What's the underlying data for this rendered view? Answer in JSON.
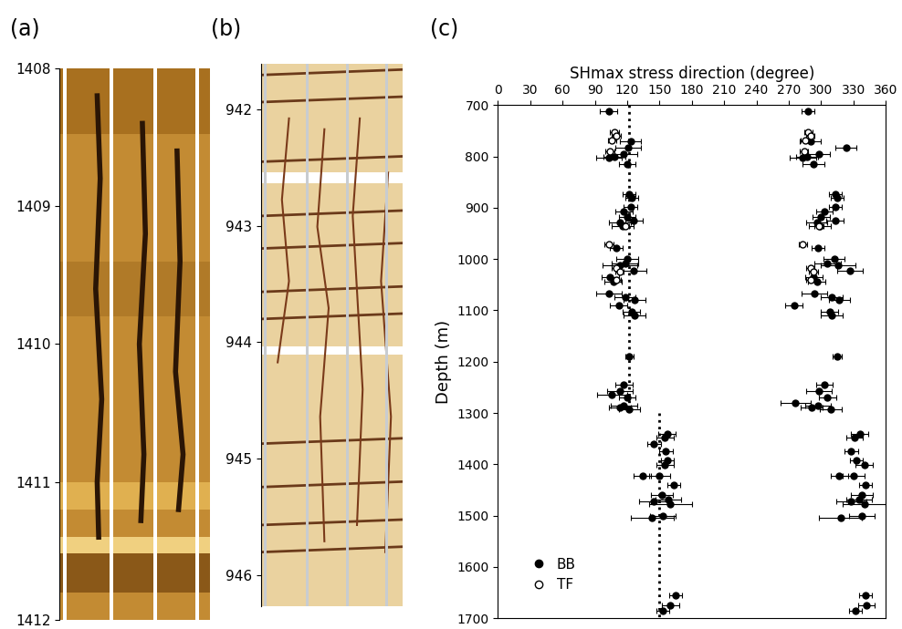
{
  "chart_data": [
    {
      "type": "image",
      "label": "(a)",
      "color": "#c38b33",
      "ylim": [
        1412,
        1408
      ],
      "yticks": [
        1408,
        1409,
        1410,
        1411,
        1412
      ]
    },
    {
      "type": "image",
      "label": "(b)",
      "color": "#ead29f",
      "ylim": [
        946.27,
        941.61
      ],
      "yticks": [
        942,
        943,
        944,
        945,
        946
      ]
    },
    {
      "type": "scatter",
      "label": "(c)",
      "xlabel": "SHmax stress direction (degree)",
      "ylabel": "Depth (m)",
      "xlim": [
        0,
        360
      ],
      "xticks": [
        0,
        30,
        60,
        90,
        120,
        150,
        180,
        210,
        240,
        270,
        300,
        330,
        360
      ],
      "ylim": [
        1700,
        700
      ],
      "yticks": [
        700,
        800,
        900,
        1000,
        1100,
        1200,
        1300,
        1400,
        1500,
        1600,
        1700
      ],
      "legend": "lower left",
      "reference_lines": [
        {
          "x": 122,
          "y": [
            700,
            1300
          ]
        },
        {
          "x": 150,
          "y": [
            1300,
            1700
          ]
        }
      ],
      "series": [
        {
          "name": "BB",
          "color": "#000000",
          "marker": "filled_circle",
          "x": [
            103,
            123,
            121,
            117,
            108,
            103,
            120,
            122,
            124,
            123,
            117,
            120,
            126,
            113,
            116,
            110,
            120,
            118,
            113,
            126,
            104,
            107,
            103,
            118,
            127,
            112,
            124,
            127,
            122,
            117,
            113,
            106,
            120,
            117,
            113,
            122,
            157,
            155,
            145,
            156,
            157,
            155,
            134,
            150,
            163,
            152,
            158,
            145,
            160,
            143,
            153,
            165,
            160,
            153,
            288,
            290,
            323,
            298,
            287,
            283,
            293,
            313,
            315,
            313,
            303,
            300,
            313,
            296,
            299,
            297,
            312,
            306,
            316,
            327,
            293,
            296,
            294,
            310,
            317,
            275,
            308,
            310,
            315,
            303,
            298,
            276,
            306,
            297,
            291,
            309,
            336,
            331,
            328,
            333,
            340,
            317,
            330,
            341,
            338,
            335,
            328,
            340,
            318,
            338,
            341,
            342,
            332
          ],
          "y": [
            712,
            770,
            783,
            795,
            800,
            803,
            815,
            873,
            880,
            898,
            908,
            918,
            925,
            928,
            935,
            978,
            1000,
            1008,
            1012,
            1022,
            1035,
            1045,
            1068,
            1075,
            1080,
            1090,
            1103,
            1110,
            1190,
            1245,
            1258,
            1265,
            1270,
            1285,
            1290,
            1293,
            1340,
            1348,
            1360,
            1375,
            1393,
            1402,
            1423,
            1423,
            1440,
            1460,
            1468,
            1472,
            1478,
            1505,
            1500,
            1655,
            1675,
            1685,
            712,
            770,
            783,
            795,
            800,
            803,
            815,
            873,
            880,
            898,
            908,
            918,
            925,
            928,
            935,
            978,
            1000,
            1008,
            1012,
            1022,
            1035,
            1045,
            1068,
            1075,
            1080,
            1090,
            1103,
            1110,
            1190,
            1245,
            1258,
            1280,
            1270,
            1285,
            1290,
            1293,
            1340,
            1348,
            1375,
            1393,
            1402,
            1423,
            1423,
            1440,
            1460,
            1468,
            1472,
            1478,
            1505,
            1500,
            1655,
            1675,
            1685
          ],
          "xerr": [
            8,
            10,
            12,
            12,
            10,
            12,
            8,
            6,
            6,
            6,
            8,
            8,
            8,
            10,
            10,
            6,
            10,
            12,
            16,
            12,
            8,
            8,
            12,
            10,
            10,
            8,
            8,
            10,
            4,
            8,
            12,
            14,
            8,
            12,
            10,
            10,
            8,
            8,
            6,
            6,
            6,
            8,
            8,
            10,
            6,
            10,
            12,
            14,
            20,
            20,
            12,
            6,
            8,
            6,
            6,
            10,
            10,
            10,
            10,
            12,
            10,
            6,
            6,
            6,
            8,
            8,
            8,
            10,
            10,
            6,
            10,
            12,
            16,
            12,
            8,
            8,
            12,
            10,
            10,
            8,
            8,
            10,
            4,
            8,
            12,
            14,
            8,
            12,
            10,
            10,
            8,
            8,
            6,
            6,
            8,
            8,
            10,
            6,
            10,
            12,
            14,
            20,
            20,
            12,
            6,
            8,
            6
          ]
        },
        {
          "name": "TF",
          "color": "#000000",
          "marker": "open_circle",
          "x": [
            108,
            110,
            106,
            104,
            118,
            103,
            110,
            113,
            110,
            288,
            290,
            285,
            284,
            298,
            283,
            290,
            293,
            290
          ],
          "y": [
            752,
            760,
            768,
            790,
            935,
            972,
            1018,
            1025,
            1040,
            752,
            760,
            768,
            790,
            935,
            972,
            1018,
            1025,
            1040
          ],
          "xerr": [
            4,
            4,
            4,
            4,
            4,
            4,
            4,
            4,
            4,
            4,
            4,
            4,
            4,
            4,
            4,
            4,
            4,
            4
          ]
        }
      ]
    }
  ]
}
